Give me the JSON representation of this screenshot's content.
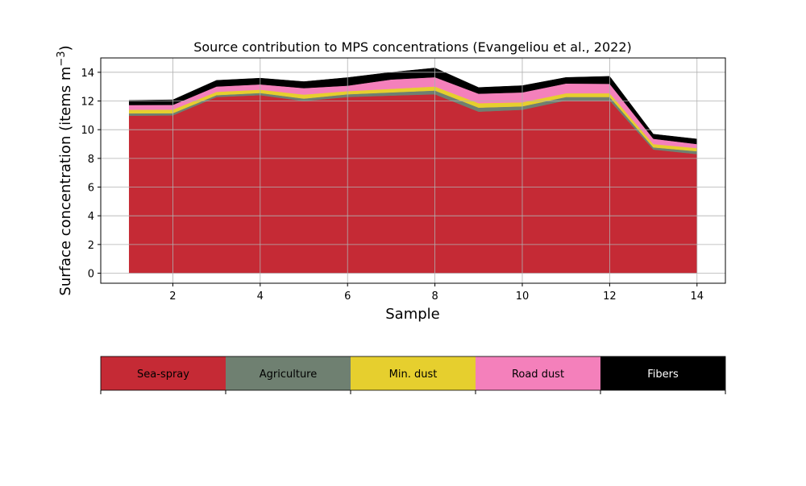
{
  "chart_data": {
    "type": "area",
    "stacked": true,
    "title": "Source contribution to MPS concentrations (Evangeliou et al., 2022)",
    "xlabel": "Sample",
    "ylabel": "Surface concentration (items m",
    "ylabel_exp": "−3",
    "ylabel_end": ")",
    "xlim": [
      0.35,
      14.65
    ],
    "ylim": [
      -0.7,
      15
    ],
    "xticks": [
      2,
      4,
      6,
      8,
      10,
      12,
      14
    ],
    "yticks": [
      0,
      2,
      4,
      6,
      8,
      10,
      12,
      14
    ],
    "grid": true,
    "x": [
      1,
      2,
      3,
      4,
      5,
      6,
      7,
      8,
      9,
      10,
      11,
      12,
      13,
      14
    ],
    "series": [
      {
        "name": "Sea-spray",
        "color": "#c52a35",
        "values": [
          10.98,
          11.0,
          12.28,
          12.41,
          12.0,
          12.28,
          12.38,
          12.47,
          11.26,
          11.39,
          12.04,
          12.04,
          8.62,
          8.3
        ]
      },
      {
        "name": "Agriculture",
        "color": "#6f8071",
        "values": [
          0.16,
          0.15,
          0.13,
          0.15,
          0.17,
          0.19,
          0.22,
          0.26,
          0.28,
          0.24,
          0.24,
          0.24,
          0.15,
          0.2
        ]
      },
      {
        "name": "Min. dust",
        "color": "#e6cf2e",
        "values": [
          0.25,
          0.25,
          0.23,
          0.23,
          0.28,
          0.22,
          0.25,
          0.28,
          0.31,
          0.28,
          0.26,
          0.26,
          0.23,
          0.22
        ]
      },
      {
        "name": "Road dust",
        "color": "#f480bb",
        "values": [
          0.33,
          0.33,
          0.37,
          0.37,
          0.45,
          0.38,
          0.65,
          0.65,
          0.66,
          0.69,
          0.68,
          0.66,
          0.37,
          0.28
        ]
      },
      {
        "name": "Fibers",
        "color": "#000000",
        "values": [
          0.32,
          0.35,
          0.43,
          0.43,
          0.45,
          0.56,
          0.5,
          0.64,
          0.43,
          0.47,
          0.42,
          0.52,
          0.32,
          0.35
        ]
      }
    ],
    "legend_placement": "bottom (colorbar)"
  }
}
